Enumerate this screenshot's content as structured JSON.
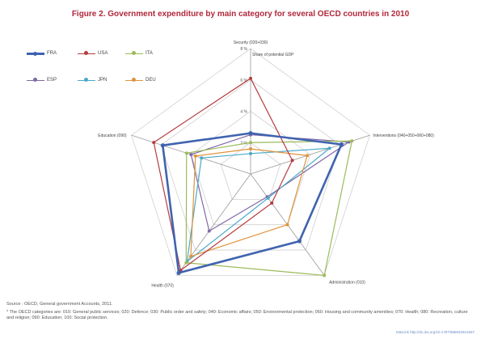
{
  "figure": {
    "title": "Figure 2. Government expenditure by main category for several OECD countries in 2010",
    "source": "Source : OECD,  General government Accounts, 2011.",
    "note": "* The OECD categories are: 010: General public services; 020: Defence; 030: Public order and safety; 040: Economic affairs; 050: Environmental protection; 060: Housing and community amenities; 070: Health; 080: Recreation, culture and religion; 090: Education; 100: Social protection.",
    "link": "StatLink  http://dx.doi.org/10.1787/888932521567"
  },
  "chart_data": {
    "type": "radar",
    "title": "Figure 2. Government expenditure by main category for several OECD countries in 2010",
    "axes": [
      "Security (020+030)",
      "Interventions (040+050+060+080)",
      "Administration (010)",
      "Health (070)",
      "Education (090)"
    ],
    "rlim": [
      0,
      8
    ],
    "ticks": [
      "2 %",
      "4 %",
      "6 %",
      "8 %"
    ],
    "tick_values": [
      2,
      4,
      6,
      8
    ],
    "annotation": "Share of potential GDP",
    "legend_placement": "top-left",
    "grid": true,
    "series": [
      {
        "name": "FRA",
        "color": "#3f63b0",
        "values": [
          2.6,
          6.1,
          5.3,
          7.8,
          5.9
        ],
        "width": 2.6
      },
      {
        "name": "USA",
        "color": "#b53c3f",
        "values": [
          6.1,
          2.8,
          2.3,
          7.6,
          6.5
        ],
        "width": 1.2
      },
      {
        "name": "ITA",
        "color": "#9bbb59",
        "values": [
          2.0,
          6.8,
          8.0,
          7.0,
          4.3
        ],
        "width": 1.2
      },
      {
        "name": "ESP",
        "color": "#7f6aa6",
        "values": [
          2.5,
          6.6,
          1.8,
          4.5,
          4.0
        ],
        "width": 1.2
      },
      {
        "name": "JPN",
        "color": "#4aa9c9",
        "values": [
          1.3,
          5.3,
          1.9,
          6.9,
          3.3
        ],
        "width": 1.2
      },
      {
        "name": "DEU",
        "color": "#e0933a",
        "values": [
          1.6,
          3.8,
          4.0,
          6.5,
          3.7
        ],
        "width": 1.2
      }
    ]
  }
}
